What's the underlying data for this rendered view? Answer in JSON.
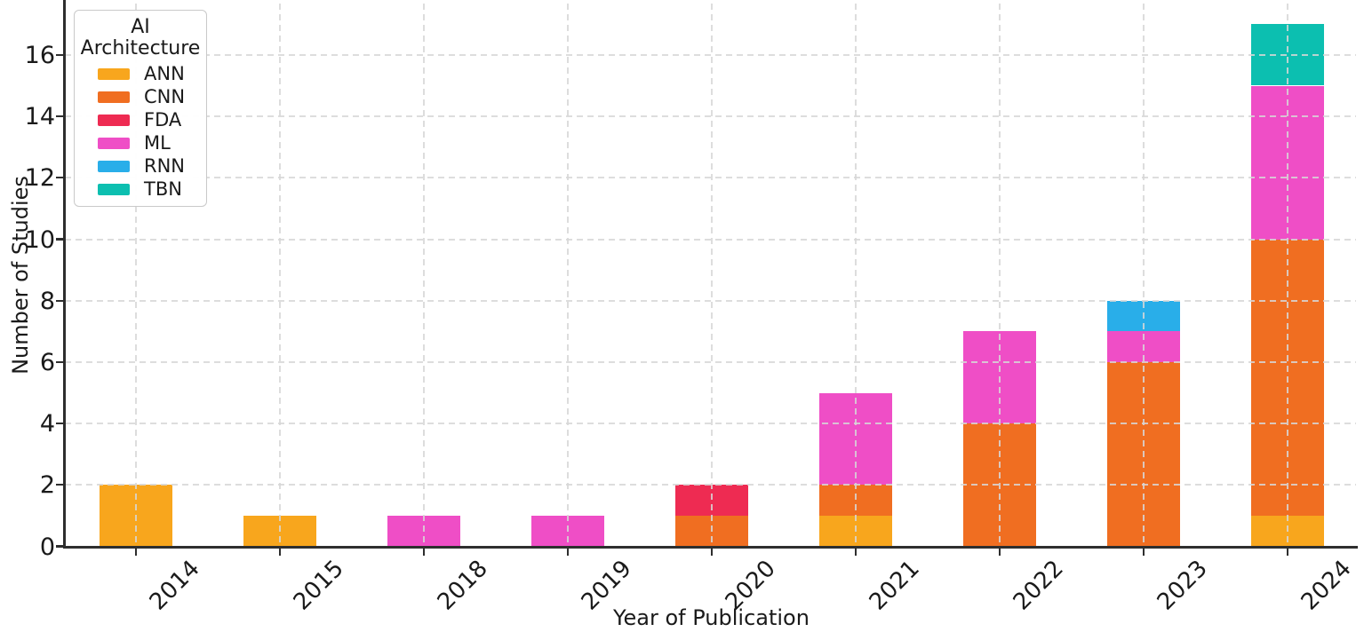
{
  "chart_data": {
    "type": "bar",
    "stacked": true,
    "title": "",
    "xlabel": "Year of Publication",
    "ylabel": "Number of Studies",
    "legend_title": "AI Architecture",
    "legend_position": "upper-left",
    "categories": [
      "2014",
      "2015",
      "2018",
      "2019",
      "2020",
      "2021",
      "2022",
      "2023",
      "2024"
    ],
    "series": [
      {
        "name": "ANN",
        "color": "#F8A61D",
        "values": [
          2,
          1,
          0,
          0,
          0,
          1,
          0,
          0,
          1
        ]
      },
      {
        "name": "CNN",
        "color": "#F06E21",
        "values": [
          0,
          0,
          0,
          0,
          1,
          1,
          4,
          6,
          9
        ]
      },
      {
        "name": "FDA",
        "color": "#EE2B52",
        "values": [
          0,
          0,
          0,
          0,
          1,
          0,
          0,
          0,
          0
        ]
      },
      {
        "name": "ML",
        "color": "#EF4EC6",
        "values": [
          0,
          0,
          1,
          1,
          0,
          3,
          3,
          1,
          5
        ]
      },
      {
        "name": "RNN",
        "color": "#29AEE9",
        "values": [
          0,
          0,
          0,
          0,
          0,
          0,
          0,
          1,
          0
        ]
      },
      {
        "name": "TBN",
        "color": "#0CBFB0",
        "values": [
          0,
          0,
          0,
          0,
          0,
          0,
          0,
          0,
          2
        ]
      }
    ],
    "yticks": [
      0,
      2,
      4,
      6,
      8,
      10,
      12,
      14,
      16
    ],
    "ylim": [
      0,
      17.8
    ],
    "grid": "dashed",
    "grid_color": "#d7d7d7",
    "axis_color": "#2e2e2e",
    "text_color": "#1a1a1a"
  }
}
